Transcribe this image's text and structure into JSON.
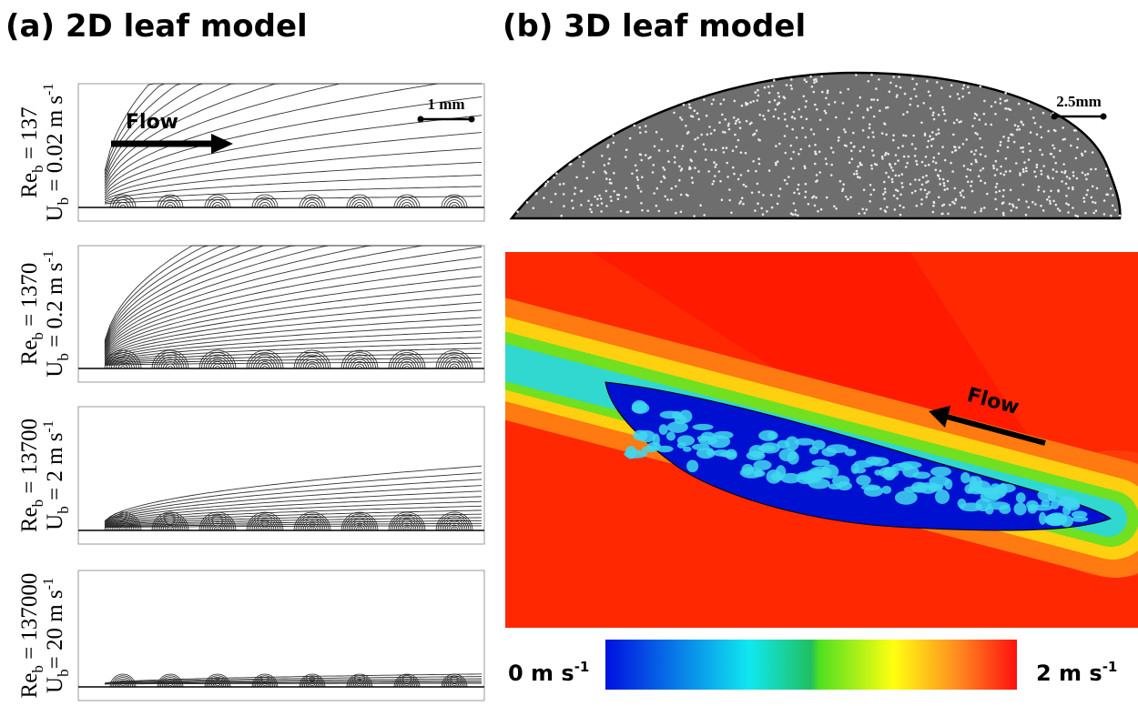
{
  "titles": {
    "a": "(a) 2D leaf model",
    "b": "(b) 3D leaf model"
  },
  "panels": [
    {
      "re": [
        "Re",
        "b",
        " = 137"
      ],
      "u": [
        "U",
        "b",
        " = 0.02 m s",
        "-1"
      ]
    },
    {
      "re": [
        "Re",
        "b",
        " = 1370"
      ],
      "u": [
        "U",
        "b",
        " = 0.2 m s",
        "-1"
      ]
    },
    {
      "re": [
        "Re",
        "b",
        " = 13700"
      ],
      "u": [
        "U",
        "b",
        " = 2 m s",
        "-1"
      ]
    },
    {
      "re": [
        "Re",
        "b",
        " = 137000"
      ],
      "u": [
        "U",
        "b",
        "= 20 m s",
        "-1"
      ]
    }
  ],
  "annotations": {
    "flow_2d": "Flow",
    "scale_2d": "1 mm",
    "scale_3d": "2.5mm",
    "flow_3d": "Flow"
  },
  "colorbar": {
    "min": [
      "0 m s",
      "-1"
    ],
    "max": [
      "2 m s",
      "-1"
    ]
  }
}
